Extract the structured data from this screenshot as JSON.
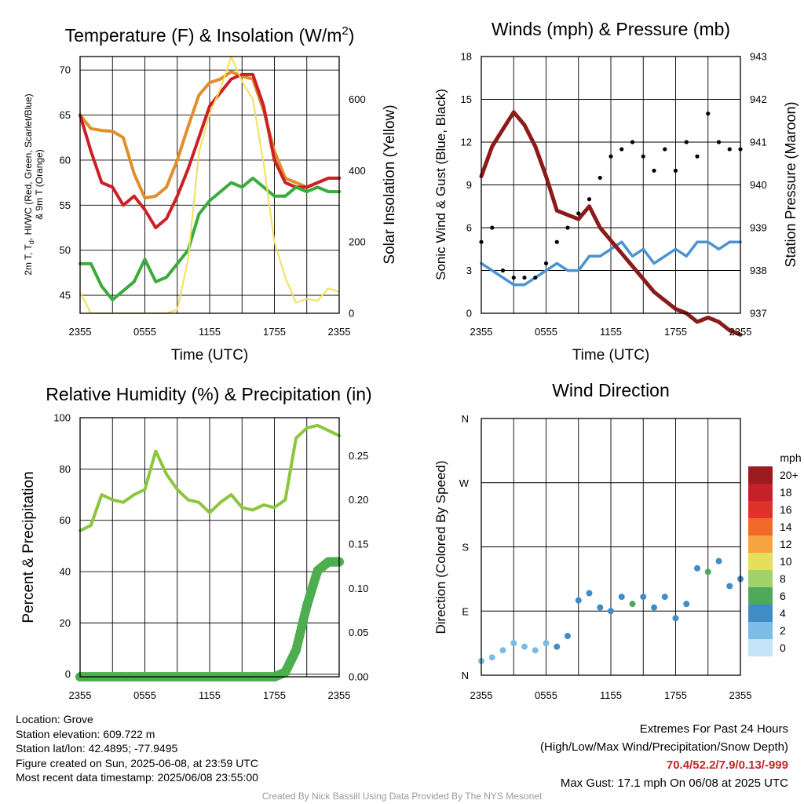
{
  "panels": {
    "temp": {
      "title_main": "Temperature (F) & Insolation (W/m",
      "title_sup": "2",
      "title_end": ")",
      "ylabel_lines": [
        "2m T, T",
        ", HI/WC (Red, Green, Scarlet/Blue)",
        "& 9m T (Orange)"
      ],
      "ylabel_sub": "d",
      "y2label": "Solar Insolation (Yellow)",
      "xlabel": "Time (UTC)"
    },
    "wind": {
      "title": "Winds (mph) & Pressure (mb)",
      "ylabel": "Sonic Wind & Gust (Blue, Black)",
      "y2label": "Station Pressure (Maroon)",
      "xlabel": "Time (UTC)"
    },
    "rh": {
      "title": "Relative Humidity (%) & Precipitation (in)",
      "ylabel": "Percent & Precipitation"
    },
    "dir": {
      "title": "Wind Direction",
      "ylabel": "Direction (Colored By Speed)",
      "legend_title": "mph"
    }
  },
  "chart_data": [
    {
      "type": "line",
      "name": "temperature",
      "x_tick_labels": [
        "2355",
        "0555",
        "1155",
        "1755",
        "2355"
      ],
      "x_range_hours": [
        0,
        24
      ],
      "ylim": [
        43,
        71.5
      ],
      "y_ticks": [
        45,
        50,
        55,
        60,
        65,
        70
      ],
      "y2lim": [
        0,
        720
      ],
      "y2_ticks": [
        0,
        200,
        400,
        600
      ],
      "grid": true,
      "series": [
        {
          "color": "#e08f2a",
          "x": [
            0,
            1,
            2,
            3,
            4,
            5,
            6,
            7,
            8,
            9,
            10,
            11,
            12,
            13,
            14,
            15,
            16,
            17,
            18,
            19,
            20,
            21,
            22,
            23,
            24
          ],
          "values": [
            65,
            63.5,
            63.3,
            63.2,
            62.5,
            58.5,
            55.8,
            56,
            57,
            60,
            63.7,
            67.2,
            68.6,
            69,
            69.8,
            69.3,
            69,
            65.5,
            61,
            58,
            57.5,
            57,
            57.5,
            58,
            58
          ]
        },
        {
          "color": "#cd2026",
          "x": [
            0,
            1,
            2,
            3,
            4,
            5,
            6,
            7,
            8,
            9,
            10,
            11,
            12,
            13,
            14,
            15,
            16,
            17,
            18,
            19,
            20,
            21,
            22,
            23,
            24
          ],
          "values": [
            65,
            61,
            57.5,
            57,
            55,
            56,
            54.5,
            52.5,
            53.5,
            56,
            59,
            62.5,
            66,
            67.5,
            69,
            69.5,
            69.5,
            66,
            60,
            57.5,
            57,
            57,
            57.5,
            58,
            58
          ]
        },
        {
          "color": "#3cab3e",
          "x": [
            0,
            1,
            2,
            3,
            4,
            5,
            6,
            7,
            8,
            9,
            10,
            11,
            12,
            13,
            14,
            15,
            16,
            17,
            18,
            19,
            20,
            21,
            22,
            23,
            24
          ],
          "values": [
            48.5,
            48.5,
            46,
            44.5,
            45.5,
            46.5,
            49,
            46.5,
            47,
            48.5,
            50,
            54,
            55.5,
            56.5,
            57.5,
            57,
            58,
            57,
            56,
            56,
            57,
            56.5,
            57,
            56.5,
            56.5
          ]
        },
        {
          "color": "#f2e05a",
          "axis": "y2",
          "x": [
            0,
            1,
            2,
            3,
            4,
            5,
            6,
            7,
            8,
            9,
            10,
            11,
            12,
            13,
            14,
            15,
            16,
            17,
            18,
            19,
            20,
            21,
            22,
            23,
            24
          ],
          "values": [
            60,
            0,
            0,
            0,
            0,
            0,
            0,
            0,
            0,
            10,
            150,
            450,
            560,
            630,
            720,
            650,
            600,
            420,
            200,
            100,
            30,
            40,
            35,
            70,
            60
          ]
        }
      ]
    },
    {
      "type": "line",
      "name": "winds",
      "x_tick_labels": [
        "2355",
        "0555",
        "1155",
        "1755",
        "2355"
      ],
      "x_range_hours": [
        0,
        24
      ],
      "ylim": [
        0,
        18
      ],
      "y_ticks": [
        0,
        3,
        6,
        9,
        12,
        15,
        18
      ],
      "y2lim": [
        937,
        943
      ],
      "y2_ticks": [
        937,
        938,
        939,
        940,
        941,
        942,
        943
      ],
      "grid": true,
      "series": [
        {
          "color": "#4a93d0",
          "x": [
            0,
            1,
            2,
            3,
            4,
            5,
            6,
            7,
            8,
            9,
            10,
            11,
            12,
            13,
            14,
            15,
            16,
            17,
            18,
            19,
            20,
            21,
            22,
            23,
            24
          ],
          "values": [
            3.5,
            3,
            2.5,
            2,
            2,
            2.5,
            3,
            3.5,
            3,
            3,
            4,
            4,
            4.5,
            5,
            4,
            4.5,
            3.5,
            4,
            4.5,
            4,
            5,
            5,
            4.5,
            5,
            5
          ]
        },
        {
          "color": "#8c1a1a",
          "axis": "y2",
          "x": [
            0,
            1,
            2,
            3,
            4,
            5,
            6,
            7,
            8,
            9,
            10,
            11,
            12,
            13,
            14,
            15,
            16,
            17,
            18,
            19,
            20,
            21,
            22,
            23,
            24
          ],
          "values": [
            940.2,
            940.9,
            941.3,
            941.7,
            941.4,
            940.9,
            940.2,
            939.4,
            939.3,
            939.2,
            939.5,
            939.0,
            938.7,
            938.4,
            938.1,
            937.8,
            937.5,
            937.3,
            937.1,
            937.0,
            936.8,
            936.9,
            936.8,
            936.6,
            936.5
          ]
        }
      ],
      "gusts": {
        "color": "#000000",
        "x": [
          0,
          1,
          2,
          3,
          4,
          5,
          6,
          7,
          8,
          9,
          10,
          11,
          12,
          13,
          14,
          15,
          16,
          17,
          18,
          19,
          20,
          21,
          22,
          23,
          24
        ],
        "values": [
          5,
          6,
          3,
          2.5,
          2.5,
          2.5,
          3.5,
          5,
          6,
          7,
          8,
          9.5,
          11,
          11.5,
          12,
          11,
          10,
          11.5,
          10,
          12,
          11,
          14,
          12,
          11.5,
          11.5
        ]
      }
    },
    {
      "type": "line",
      "name": "humidity",
      "x_tick_labels": [
        "2355",
        "0555",
        "1155",
        "1755",
        "2355"
      ],
      "x_range_hours": [
        0,
        24
      ],
      "ylim": [
        -1,
        100
      ],
      "y_ticks": [
        0,
        20,
        40,
        60,
        80,
        100
      ],
      "y2lim": [
        0,
        0.293
      ],
      "y2_ticks": [
        "0.00",
        "0.05",
        "0.10",
        "0.15",
        "0.20",
        "0.25"
      ],
      "grid": true,
      "series": [
        {
          "color": "#8cc63f",
          "x": [
            0,
            1,
            2,
            3,
            4,
            5,
            6,
            7,
            8,
            9,
            10,
            11,
            12,
            13,
            14,
            15,
            16,
            17,
            18,
            19,
            20,
            21,
            22,
            23,
            24
          ],
          "values": [
            56,
            58,
            70,
            68,
            67,
            70,
            72,
            87,
            78,
            72,
            68,
            67,
            63,
            67,
            70,
            65,
            64,
            66,
            65,
            68,
            92,
            96,
            97,
            95,
            93
          ]
        }
      ],
      "precip": {
        "color": "#4cae4f",
        "x": [
          0,
          3,
          6,
          9,
          12,
          15,
          18,
          19,
          20,
          21,
          22,
          23,
          24
        ],
        "values": [
          0,
          0,
          0,
          0,
          0,
          0,
          0,
          0.005,
          0.03,
          0.08,
          0.12,
          0.13,
          0.13
        ]
      }
    },
    {
      "type": "scatter",
      "name": "wind-direction",
      "x_tick_labels": [
        "2355",
        "0555",
        "1155",
        "1755",
        "2355"
      ],
      "y_tick_labels": [
        "N",
        "E",
        "S",
        "W",
        "N"
      ],
      "ylim": [
        0,
        360
      ],
      "grid": true,
      "legend": {
        "placement": "right",
        "labels": [
          "20+",
          "18",
          "16",
          "14",
          "12",
          "10",
          "8",
          "6",
          "4",
          "2",
          "0"
        ],
        "colors": [
          "#9b1b20",
          "#c62028",
          "#e0312b",
          "#f26a2b",
          "#f8a341",
          "#e5e05a",
          "#a1d36b",
          "#4fa95a",
          "#3f8cc7",
          "#7cbce7",
          "#c3e3f7"
        ]
      },
      "points": {
        "x": [
          0,
          1,
          2,
          3,
          4,
          5,
          6,
          7,
          8,
          9,
          10,
          11,
          12,
          13,
          14,
          15,
          16,
          17,
          18,
          19,
          20,
          21,
          22,
          23,
          24
        ],
        "values": [
          20,
          25,
          35,
          45,
          40,
          35,
          45,
          40,
          55,
          105,
          115,
          95,
          90,
          110,
          100,
          110,
          95,
          110,
          80,
          100,
          150,
          145,
          160,
          125,
          135
        ],
        "speeds": [
          2,
          2,
          2,
          2,
          2,
          2,
          2,
          3,
          3,
          4,
          4,
          4,
          4,
          4,
          6,
          4,
          4,
          4,
          4,
          4,
          4,
          6,
          4,
          4,
          4
        ]
      }
    }
  ],
  "info": {
    "location": "Location: Grove",
    "elevation": "Station elevation: 609.722 m",
    "latlon": "Station lat/lon: 42.4895; -77.9495",
    "created": "Figure created on Sun, 2025-06-08, at 23:59 UTC",
    "recent": "Most recent data timestamp: 2025/06/08 23:55:00"
  },
  "extremes": {
    "title": "Extremes For Past 24 Hours",
    "subtitle": "(High/Low/Max Wind/Precipitation/Snow Depth)",
    "values": "70.4/52.2/7.9/0.13/-999",
    "gust": "Max Gust: 17.1 mph On 06/08 at 2025 UTC"
  },
  "credit": "Created By Nick Bassill Using Data Provided By The NYS Mesonet"
}
